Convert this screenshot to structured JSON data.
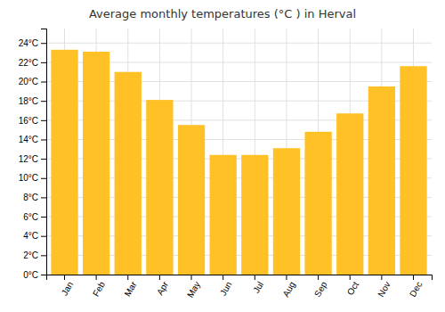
{
  "chart_data": {
    "type": "bar",
    "title": "Average monthly temperatures (°C ) in Herval",
    "categories": [
      "Jan",
      "Feb",
      "Mar",
      "Apr",
      "May",
      "Jun",
      "Jul",
      "Aug",
      "Sep",
      "Oct",
      "Nov",
      "Dec"
    ],
    "values": [
      23.3,
      23.1,
      21.0,
      18.1,
      15.5,
      12.4,
      12.4,
      13.1,
      14.8,
      16.7,
      19.5,
      21.6
    ],
    "color": "#FFC125",
    "ylim": [
      0,
      25.5
    ],
    "yticks": [
      {
        "value": 0,
        "label": "0°C"
      },
      {
        "value": 2,
        "label": "2°C"
      },
      {
        "value": 4,
        "label": "4°C"
      },
      {
        "value": 6,
        "label": "6°C"
      },
      {
        "value": 8,
        "label": "8°C"
      },
      {
        "value": 10,
        "label": "10°C"
      },
      {
        "value": 12,
        "label": "12°C"
      },
      {
        "value": 14,
        "label": "14°C"
      },
      {
        "value": 16,
        "label": "16°C"
      },
      {
        "value": 18,
        "label": "18°C"
      },
      {
        "value": 20,
        "label": "20°C"
      },
      {
        "value": 22,
        "label": "22°C"
      },
      {
        "value": 24,
        "label": "24°C"
      }
    ],
    "grid": true
  }
}
